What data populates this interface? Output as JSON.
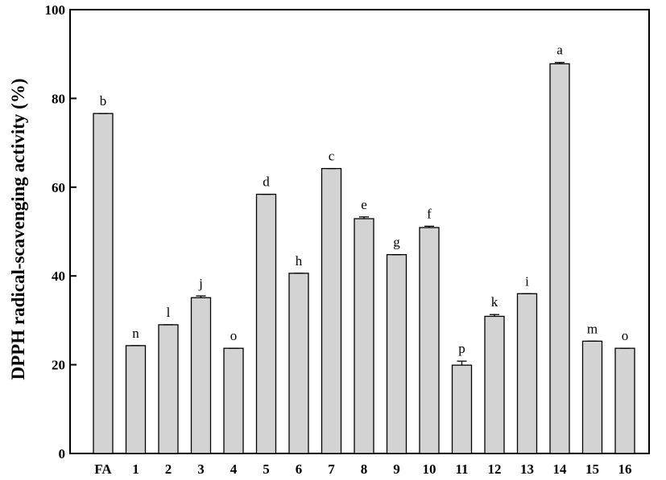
{
  "chart_data": {
    "type": "bar",
    "title": "",
    "xlabel": "",
    "ylabel": "DPPH radical-scavenging activity (%)",
    "ylim": [
      0,
      100
    ],
    "yticks": [
      0,
      20,
      40,
      60,
      80,
      100
    ],
    "grid": false,
    "categories": [
      "FA",
      "1",
      "2",
      "3",
      "4",
      "5",
      "6",
      "7",
      "8",
      "9",
      "10",
      "11",
      "12",
      "13",
      "14",
      "15",
      "16"
    ],
    "values": [
      76.6,
      24.3,
      29.0,
      35.1,
      23.7,
      58.4,
      40.6,
      64.2,
      52.9,
      44.8,
      50.9,
      19.9,
      30.9,
      36.0,
      87.8,
      25.3,
      23.7
    ],
    "errors": [
      0,
      0,
      0,
      0.4,
      0,
      0,
      0,
      0,
      0.4,
      0,
      0.3,
      0.9,
      0.4,
      0,
      0.3,
      0,
      0
    ],
    "significance_letters": [
      "b",
      "n",
      "l",
      "j",
      "o",
      "d",
      "h",
      "c",
      "e",
      "g",
      "f",
      "p",
      "k",
      "i",
      "a",
      "m",
      "o"
    ],
    "bar_color": "#d3d3d3",
    "edge_color": "#000000"
  }
}
